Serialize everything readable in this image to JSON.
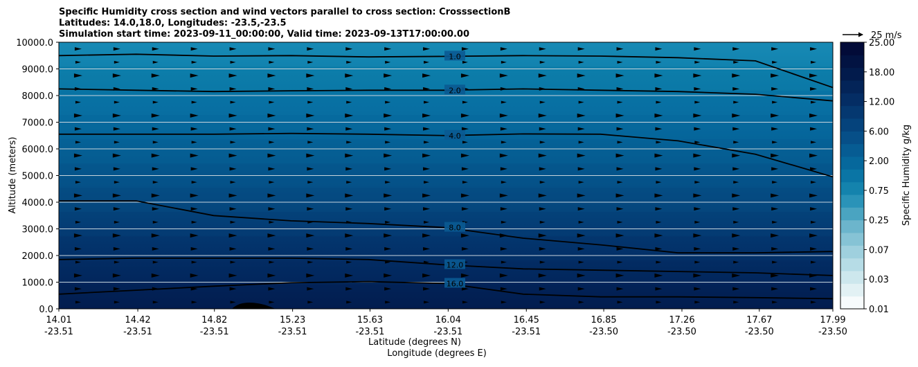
{
  "chart_data": {
    "type": "heatmap",
    "title_lines": [
      "Specific Humidity cross section and wind vectors parallel to cross section: CrosssectionB",
      "Latitudes: 14.0,18.0, Longitudes: -23.5,-23.5",
      "Simulation start time: 2023-09-11_00:00:00, Valid time: 2023-09-13T17:00:00.00"
    ],
    "ylabel": "Altitude (meters)",
    "xlabel_lines": [
      "Latitude (degrees N)",
      "Longitude (degrees E)"
    ],
    "ylim": [
      0,
      10000
    ],
    "y_ticks": [
      {
        "value": 0,
        "label": "0.0"
      },
      {
        "value": 1000,
        "label": "1000.0"
      },
      {
        "value": 2000,
        "label": "2000.0"
      },
      {
        "value": 3000,
        "label": "3000.0"
      },
      {
        "value": 4000,
        "label": "4000.0"
      },
      {
        "value": 5000,
        "label": "5000.0"
      },
      {
        "value": 6000,
        "label": "6000.0"
      },
      {
        "value": 7000,
        "label": "7000.0"
      },
      {
        "value": 8000,
        "label": "8000.0"
      },
      {
        "value": 9000,
        "label": "9000.0"
      },
      {
        "value": 10000,
        "label": "10000.0"
      }
    ],
    "x_ticks": [
      {
        "frac": 0.0,
        "lat": "14.01",
        "lon": "-23.51"
      },
      {
        "frac": 0.102,
        "lat": "14.42",
        "lon": "-23.51"
      },
      {
        "frac": 0.201,
        "lat": "14.82",
        "lon": "-23.51"
      },
      {
        "frac": 0.302,
        "lat": "15.23",
        "lon": "-23.51"
      },
      {
        "frac": 0.402,
        "lat": "15.63",
        "lon": "-23.51"
      },
      {
        "frac": 0.503,
        "lat": "16.04",
        "lon": "-23.51"
      },
      {
        "frac": 0.604,
        "lat": "16.45",
        "lon": "-23.51"
      },
      {
        "frac": 0.704,
        "lat": "16.85",
        "lon": "-23.50"
      },
      {
        "frac": 0.805,
        "lat": "17.26",
        "lon": "-23.50"
      },
      {
        "frac": 0.905,
        "lat": "17.67",
        "lon": "-23.50"
      },
      {
        "frac": 1.0,
        "lat": "17.99",
        "lon": "-23.50"
      }
    ],
    "colorbar": {
      "label": "Specific Humidity g/kg",
      "levels": [
        0.01,
        0.03,
        0.07,
        0.25,
        0.75,
        2.0,
        6.0,
        12.0,
        18.0,
        25.0
      ],
      "tick_labels": [
        "0.01",
        "0.03",
        "0.07",
        "0.25",
        "0.75",
        "2.00",
        "6.00",
        "12.00",
        "18.00",
        "25.00"
      ],
      "colors": [
        "#f7fbfc",
        "#e2f1f4",
        "#cde7ed",
        "#b6dce6",
        "#9fd0de",
        "#86c3d5",
        "#6cb5cc",
        "#4aa4c1",
        "#2a93b8",
        "#1483ad",
        "#0a75a5",
        "#06689c",
        "#065c93",
        "#064f88",
        "#05437c",
        "#053870",
        "#042d64",
        "#032458",
        "#021b4c",
        "#021342",
        "#020b38"
      ]
    },
    "contours": [
      {
        "label": "1.0",
        "altitudes": [
          9500,
          9550,
          9480,
          9500,
          9450,
          9470,
          9500,
          9480,
          9420,
          9300,
          8300
        ]
      },
      {
        "label": "2.0",
        "altitudes": [
          8250,
          8200,
          8150,
          8180,
          8200,
          8200,
          8250,
          8200,
          8150,
          8050,
          7800
        ]
      },
      {
        "label": "4.0",
        "altitudes": [
          6550,
          6550,
          6550,
          6580,
          6550,
          6500,
          6560,
          6550,
          6300,
          5800,
          4950
        ]
      },
      {
        "label": "8.0",
        "altitudes": [
          4050,
          4050,
          3500,
          3300,
          3200,
          3050,
          2650,
          2400,
          2100,
          2100,
          2150
        ]
      },
      {
        "label": "12.0",
        "altitudes": [
          1850,
          1900,
          1900,
          1900,
          1850,
          1650,
          1500,
          1450,
          1400,
          1350,
          1250
        ]
      },
      {
        "label": "16.0",
        "altitudes": [
          550,
          700,
          850,
          980,
          1020,
          950,
          550,
          450,
          450,
          420,
          380
        ]
      }
    ],
    "wind_vectors": {
      "reference": "25 m/s",
      "direction": "parallel (left-to-right)",
      "columns": 20,
      "rows": 20
    }
  }
}
